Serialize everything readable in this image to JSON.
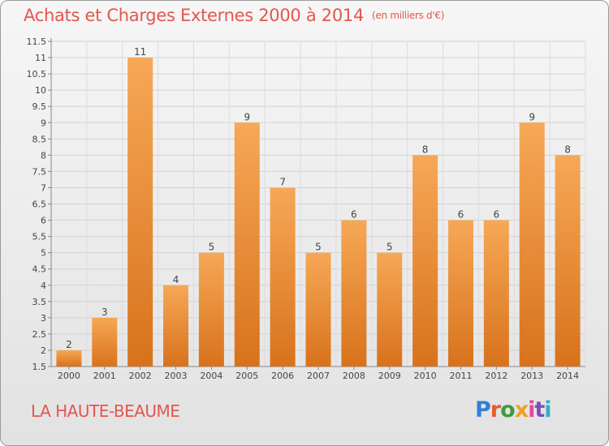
{
  "header": {
    "title": "Achats et Charges Externes 2000 à 2014",
    "unit": "(en milliers d'€)"
  },
  "footer": {
    "commune": "LA HAUTE-BEAUME",
    "logo_text": "Proxiti"
  },
  "colors": {
    "title": "#e4564f",
    "bar_light": "#f6a856",
    "bar_dark": "#d8721c"
  },
  "chart_data": {
    "type": "bar",
    "title": "Achats et Charges Externes 2000 à 2014",
    "subtitle": "(en milliers d'€)",
    "categories": [
      "2000",
      "2001",
      "2002",
      "2003",
      "2004",
      "2005",
      "2006",
      "2007",
      "2008",
      "2009",
      "2010",
      "2011",
      "2012",
      "2013",
      "2014"
    ],
    "values": [
      2,
      3,
      11,
      4,
      5,
      9,
      7,
      5,
      6,
      5,
      8,
      6,
      6,
      9,
      8
    ],
    "data_labels": [
      "2",
      "3",
      "11",
      "4",
      "5",
      "9",
      "7",
      "5",
      "6",
      "5",
      "8",
      "6",
      "6",
      "9",
      "8"
    ],
    "ylim": [
      1.5,
      11.5
    ],
    "yticks": [
      "1.5",
      "2",
      "2.5",
      "3",
      "3.5",
      "4",
      "4.5",
      "5",
      "5.5",
      "6",
      "6.5",
      "7",
      "7.5",
      "8",
      "8.5",
      "9",
      "9.5",
      "10",
      "10.5",
      "11",
      "11.5"
    ],
    "xlabel": "",
    "ylabel": "",
    "grid": true,
    "legend": false
  }
}
